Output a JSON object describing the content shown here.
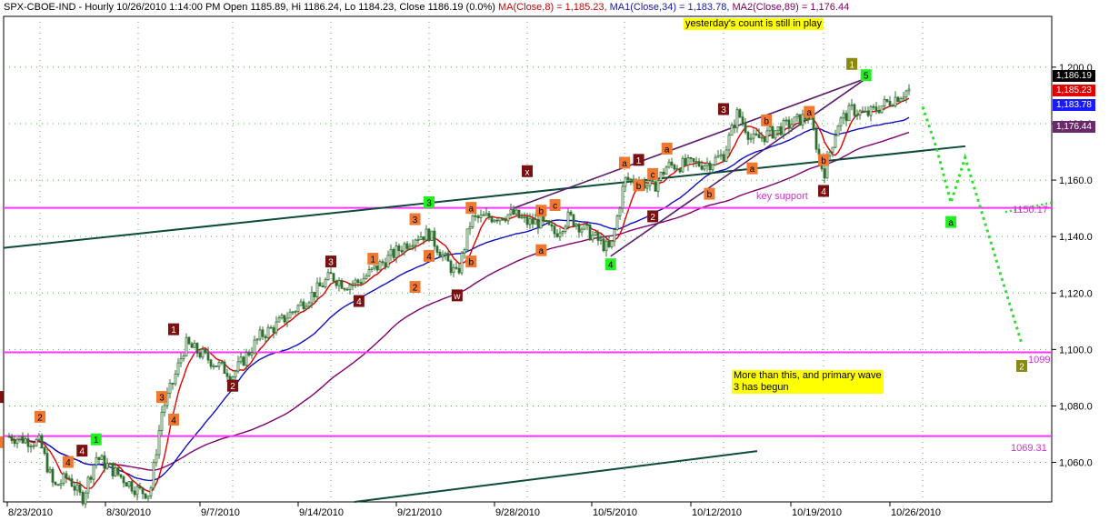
{
  "header": {
    "prefix": "SPX-CBOE-IND - Hourly 10/26/2010 1:14:00 PM Open 1185.89, Hi 1186.24, Lo 1184.23, Close 1186.19 (0.0%)",
    "ma8": "MA(Close,8) = 1,185.23,",
    "ma34": "MA1(Close,34) = 1,183.78,",
    "ma89": "MA2(Close,89) = 1,176.44"
  },
  "notes": {
    "count": "yesterday's count is still in play",
    "primary_line1": "More than this, and primary wave",
    "primary_line2": "3 has begun",
    "key_support": "key support"
  },
  "price_flags": {
    "close": "1,186.19",
    "ma8": "1,185.23",
    "ma34": "1,183.78",
    "ma89": "1,176.44"
  },
  "colors": {
    "bars": "#2f6f2f",
    "ma8": "#e00000",
    "ma34": "#1010c0",
    "ma89": "#800070",
    "hlines": "#ff33ff",
    "trendlines": "#0e4a3a",
    "channel": "#5a1a6a",
    "projection": "#33dd33",
    "label_dark": "#7a1010",
    "label_orange": "#f07830",
    "label_green": "#22ee22",
    "label_olive": "#8a8a10"
  },
  "chart_data": {
    "type": "candlestick",
    "title": "SPX-CBOE-IND - Hourly",
    "x_ticks": [
      "8/23/2010",
      "8/30/2010",
      "9/7/2010",
      "9/14/2010",
      "9/21/2010",
      "9/28/2010",
      "10/5/2010",
      "10/12/2010",
      "10/19/2010",
      "10/26/2010"
    ],
    "y_ticks": [
      "1,060.0",
      "1,080.0",
      "1,100.0",
      "1,120.0",
      "1,140.0",
      "1,160.0",
      "1,180.0",
      "1,200.0"
    ],
    "ylim": [
      1046,
      1218
    ],
    "grid": true,
    "horizontal_levels": [
      {
        "value": 1150.17,
        "label": "1150.17"
      },
      {
        "value": 1099,
        "label": "1099"
      },
      {
        "value": 1069.31,
        "label": "1069.31"
      }
    ],
    "price_path": [
      {
        "date": "2010-08-20",
        "price": 1070
      },
      {
        "date": "2010-08-23",
        "price": 1067
      },
      {
        "date": "2010-08-24",
        "price": 1051
      },
      {
        "date": "2010-08-25",
        "price": 1055
      },
      {
        "date": "2010-08-26",
        "price": 1047
      },
      {
        "date": "2010-08-27",
        "price": 1062
      },
      {
        "date": "2010-08-30",
        "price": 1050
      },
      {
        "date": "2010-08-31",
        "price": 1049
      },
      {
        "date": "2010-09-01",
        "price": 1078
      },
      {
        "date": "2010-09-02",
        "price": 1089
      },
      {
        "date": "2010-09-03",
        "price": 1102
      },
      {
        "date": "2010-09-07",
        "price": 1091
      },
      {
        "date": "2010-09-08",
        "price": 1098
      },
      {
        "date": "2010-09-09",
        "price": 1105
      },
      {
        "date": "2010-09-10",
        "price": 1108
      },
      {
        "date": "2010-09-13",
        "price": 1121
      },
      {
        "date": "2010-09-14",
        "price": 1126
      },
      {
        "date": "2010-09-15",
        "price": 1123
      },
      {
        "date": "2010-09-16",
        "price": 1124
      },
      {
        "date": "2010-09-17",
        "price": 1128
      },
      {
        "date": "2010-09-20",
        "price": 1140
      },
      {
        "date": "2010-09-21",
        "price": 1141
      },
      {
        "date": "2010-09-22",
        "price": 1133
      },
      {
        "date": "2010-09-23",
        "price": 1126
      },
      {
        "date": "2010-09-24",
        "price": 1146
      },
      {
        "date": "2010-09-27",
        "price": 1148
      },
      {
        "date": "2010-09-28",
        "price": 1145
      },
      {
        "date": "2010-09-29",
        "price": 1145
      },
      {
        "date": "2010-09-30",
        "price": 1141
      },
      {
        "date": "2010-10-01",
        "price": 1147
      },
      {
        "date": "2010-10-04",
        "price": 1135
      },
      {
        "date": "2010-10-05",
        "price": 1160
      },
      {
        "date": "2010-10-06",
        "price": 1160
      },
      {
        "date": "2010-10-07",
        "price": 1157
      },
      {
        "date": "2010-10-08",
        "price": 1165
      },
      {
        "date": "2010-10-11",
        "price": 1166
      },
      {
        "date": "2010-10-12",
        "price": 1169
      },
      {
        "date": "2010-10-13",
        "price": 1184
      },
      {
        "date": "2010-10-14",
        "price": 1174
      },
      {
        "date": "2010-10-15",
        "price": 1176
      },
      {
        "date": "2010-10-18",
        "price": 1183
      },
      {
        "date": "2010-10-19",
        "price": 1162
      },
      {
        "date": "2010-10-20",
        "price": 1180
      },
      {
        "date": "2010-10-21",
        "price": 1185
      },
      {
        "date": "2010-10-22",
        "price": 1183
      },
      {
        "date": "2010-10-25",
        "price": 1192
      },
      {
        "date": "2010-10-26",
        "price": 1186.19
      }
    ],
    "projection": [
      {
        "date": "2010-10-26",
        "price": 1186
      },
      {
        "date": "2010-10-27",
        "price": 1171
      },
      {
        "date": "2010-10-28",
        "price": 1152
      },
      {
        "date": "2010-10-29",
        "price": 1168
      },
      {
        "date": "2010-11-02",
        "price": 1102
      }
    ],
    "wave_labels": [
      {
        "text": "2",
        "date": "2010-08-20",
        "price": 1083,
        "style": "dark"
      },
      {
        "text": "2",
        "date": "2010-08-23",
        "price": 1076,
        "style": "orange"
      },
      {
        "text": "1",
        "date": "2010-08-20",
        "price": 1067,
        "style": "orange"
      },
      {
        "text": "4",
        "date": "2010-08-25",
        "price": 1060,
        "style": "orange"
      },
      {
        "text": "4",
        "date": "2010-08-26",
        "price": 1064,
        "style": "dark"
      },
      {
        "text": "1",
        "date": "2010-08-27",
        "price": 1068,
        "style": "green"
      },
      {
        "text": "3",
        "date": "2010-09-01",
        "price": 1083,
        "style": "orange"
      },
      {
        "text": "4",
        "date": "2010-09-02",
        "price": 1075,
        "style": "orange"
      },
      {
        "text": "1",
        "date": "2010-09-02",
        "price": 1107,
        "style": "dark"
      },
      {
        "text": "2",
        "date": "2010-09-07",
        "price": 1087,
        "style": "dark"
      },
      {
        "text": "3",
        "date": "2010-09-14",
        "price": 1131,
        "style": "dark"
      },
      {
        "text": "4",
        "date": "2010-09-16",
        "price": 1117,
        "style": "dark"
      },
      {
        "text": "1",
        "date": "2010-09-17",
        "price": 1132,
        "style": "orange"
      },
      {
        "text": "2",
        "date": "2010-09-20",
        "price": 1122,
        "style": "orange"
      },
      {
        "text": "3",
        "date": "2010-09-20",
        "price": 1146,
        "style": "orange"
      },
      {
        "text": "4",
        "date": "2010-09-21",
        "price": 1133,
        "style": "orange"
      },
      {
        "text": "3",
        "date": "2010-09-21",
        "price": 1152,
        "style": "green"
      },
      {
        "text": "w",
        "date": "2010-09-23",
        "price": 1119,
        "style": "dark"
      },
      {
        "text": "a",
        "date": "2010-09-24",
        "price": 1150,
        "style": "orange"
      },
      {
        "text": "b",
        "date": "2010-09-24",
        "price": 1131,
        "style": "orange"
      },
      {
        "text": "x",
        "date": "2010-09-28",
        "price": 1163,
        "style": "dark"
      },
      {
        "text": "b",
        "date": "2010-09-29",
        "price": 1149,
        "style": "orange"
      },
      {
        "text": "a",
        "date": "2010-09-29",
        "price": 1135,
        "style": "orange"
      },
      {
        "text": "c",
        "date": "2010-09-30",
        "price": 1151,
        "style": "orange"
      },
      {
        "text": "4",
        "date": "2010-10-04",
        "price": 1130,
        "style": "green"
      },
      {
        "text": "a",
        "date": "2010-10-05",
        "price": 1166,
        "style": "orange"
      },
      {
        "text": "b",
        "date": "2010-10-06",
        "price": 1158,
        "style": "orange"
      },
      {
        "text": "1",
        "date": "2010-10-06",
        "price": 1167,
        "style": "dark"
      },
      {
        "text": "c",
        "date": "2010-10-07",
        "price": 1162,
        "style": "orange"
      },
      {
        "text": "2",
        "date": "2010-10-07",
        "price": 1147,
        "style": "dark"
      },
      {
        "text": "a",
        "date": "2010-10-08",
        "price": 1171,
        "style": "orange"
      },
      {
        "text": "b",
        "date": "2010-10-11",
        "price": 1155,
        "style": "orange"
      },
      {
        "text": "3",
        "date": "2010-10-12",
        "price": 1185,
        "style": "dark"
      },
      {
        "text": "a",
        "date": "2010-10-14",
        "price": 1164,
        "style": "orange"
      },
      {
        "text": "b",
        "date": "2010-10-15",
        "price": 1181,
        "style": "orange"
      },
      {
        "text": "a",
        "date": "2010-10-18",
        "price": 1184,
        "style": "orange"
      },
      {
        "text": "b",
        "date": "2010-10-19",
        "price": 1167,
        "style": "orange"
      },
      {
        "text": "4",
        "date": "2010-10-19",
        "price": 1156,
        "style": "dark"
      },
      {
        "text": "1",
        "date": "2010-10-21",
        "price": 1201,
        "style": "olive"
      },
      {
        "text": "5",
        "date": "2010-10-22",
        "price": 1197,
        "style": "green"
      },
      {
        "text": "a",
        "date": "2010-10-28",
        "price": 1145,
        "style": "green"
      },
      {
        "text": "2",
        "date": "2010-11-02",
        "price": 1094,
        "style": "olive"
      }
    ],
    "moving_averages": [
      {
        "name": "MA(Close,8)",
        "last": 1185.23
      },
      {
        "name": "MA1(Close,34)",
        "last": 1183.78
      },
      {
        "name": "MA2(Close,89)",
        "last": 1176.44
      }
    ]
  }
}
